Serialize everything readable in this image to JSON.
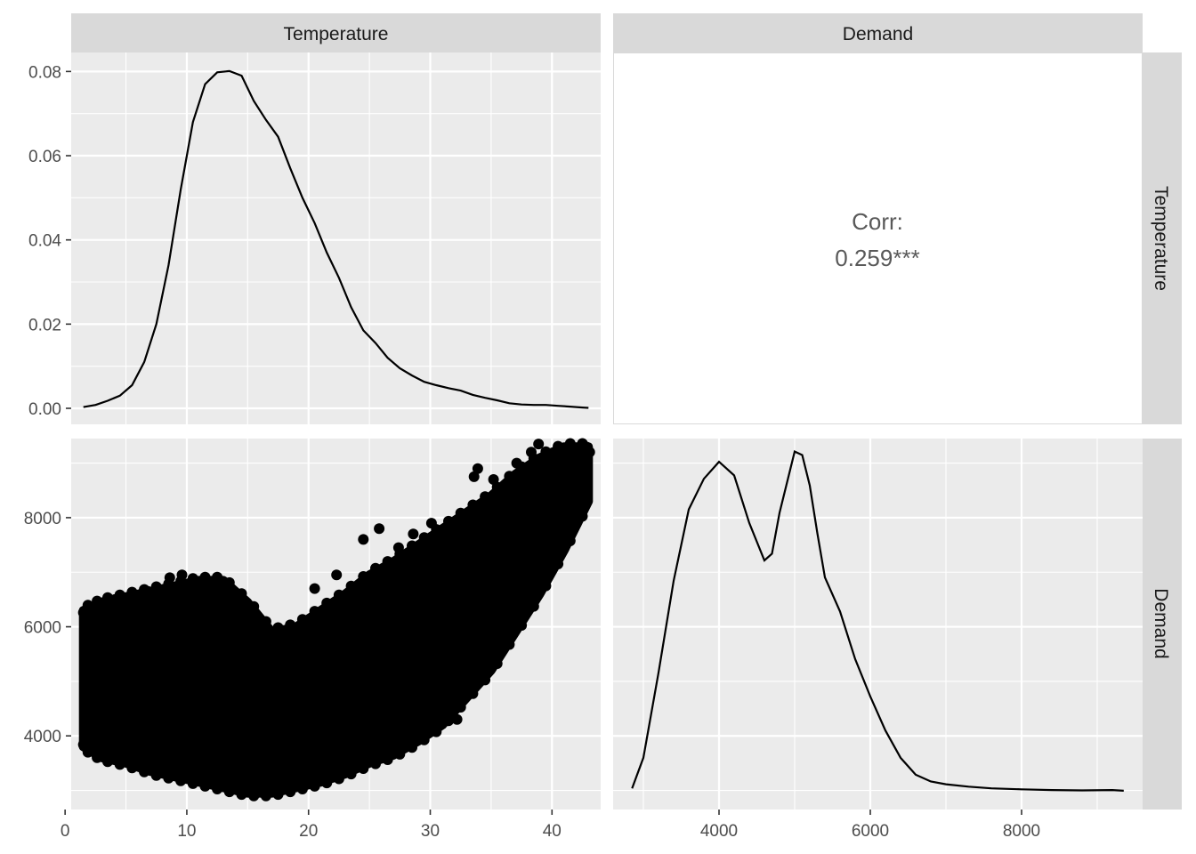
{
  "chart_data": {
    "type": "pairs",
    "variables": [
      "Temperature",
      "Demand"
    ],
    "strips": {
      "top": [
        "Temperature",
        "Demand"
      ],
      "right": [
        "Temperature",
        "Demand"
      ]
    },
    "panels": {
      "temperature_density": {
        "type": "line",
        "xlim": [
          0.5,
          44
        ],
        "ylim": [
          0,
          0.0805
        ],
        "yticks": [
          0.0,
          0.02,
          0.04,
          0.06,
          0.08
        ],
        "ytick_labels": [
          "0.00",
          "0.02",
          "0.04",
          "0.06",
          "0.08"
        ],
        "x": [
          1.5,
          2.5,
          3.5,
          4.5,
          5.5,
          6.5,
          7.5,
          8.5,
          9.5,
          10.5,
          11.5,
          12.5,
          13.5,
          14.5,
          15.5,
          16.5,
          17.5,
          18.5,
          19.5,
          20.5,
          21.5,
          22.5,
          23.5,
          24.5,
          25.5,
          26.5,
          27.5,
          28.5,
          29.5,
          30.5,
          31.5,
          32.5,
          33.5,
          34.5,
          35.5,
          36.5,
          37.5,
          38.5,
          39.5,
          40.5,
          41.5,
          42.5,
          43.0
        ],
        "y": [
          0.0003,
          0.0008,
          0.0018,
          0.003,
          0.0055,
          0.011,
          0.02,
          0.034,
          0.052,
          0.068,
          0.077,
          0.0798,
          0.0801,
          0.079,
          0.073,
          0.0685,
          0.0645,
          0.057,
          0.05,
          0.044,
          0.037,
          0.031,
          0.024,
          0.0185,
          0.0155,
          0.012,
          0.0095,
          0.0078,
          0.0063,
          0.0055,
          0.0048,
          0.0042,
          0.0032,
          0.0025,
          0.0019,
          0.0012,
          0.0009,
          0.0008,
          0.0008,
          0.0006,
          0.0004,
          0.0002,
          0.0001
        ]
      },
      "correlation": {
        "label": "Corr:",
        "value": "0.259***"
      },
      "scatter": {
        "type": "scatter",
        "xlim": [
          0.5,
          44
        ],
        "ylim": [
          2650,
          9450
        ],
        "xticks": [
          0,
          10,
          20,
          30,
          40
        ],
        "xtick_labels": [
          "0",
          "10",
          "20",
          "30",
          "40"
        ],
        "yticks": [
          4000,
          6000,
          8000
        ],
        "ytick_labels": [
          "4000",
          "6000",
          "8000"
        ],
        "envelope": {
          "x": [
            1.5,
            3,
            5,
            7,
            9,
            11,
            13,
            15,
            17,
            19,
            21,
            23,
            25,
            27,
            29,
            31,
            33,
            35,
            37,
            39,
            41,
            43
          ],
          "lower": [
            3800,
            3600,
            3500,
            3350,
            3250,
            3150,
            3050,
            2950,
            2950,
            3050,
            3150,
            3300,
            3500,
            3650,
            3900,
            4200,
            4700,
            5200,
            5900,
            6600,
            7400,
            8300
          ],
          "upper": [
            6300,
            6450,
            6550,
            6650,
            6750,
            6850,
            6850,
            6450,
            5900,
            6000,
            6300,
            6600,
            6950,
            7200,
            7500,
            7800,
            8100,
            8400,
            8800,
            9100,
            9300,
            9300
          ]
        },
        "outliers": [
          [
            1.6,
            4350
          ],
          [
            1.8,
            4650
          ],
          [
            2.1,
            6300
          ],
          [
            2.4,
            5200
          ],
          [
            1.9,
            3950
          ],
          [
            2.6,
            5900
          ],
          [
            3.2,
            6450
          ],
          [
            4.1,
            6500
          ],
          [
            6.8,
            6650
          ],
          [
            8.6,
            6900
          ],
          [
            9.6,
            6950
          ],
          [
            11.5,
            6800
          ],
          [
            22.3,
            6950
          ],
          [
            24.5,
            7600
          ],
          [
            25.8,
            7800
          ],
          [
            27.4,
            7450
          ],
          [
            28.6,
            7700
          ],
          [
            29.3,
            7350
          ],
          [
            30.1,
            7900
          ],
          [
            30.7,
            6400
          ],
          [
            31.1,
            6050
          ],
          [
            32.2,
            4300
          ],
          [
            33.0,
            8050
          ],
          [
            33.6,
            8750
          ],
          [
            33.9,
            8900
          ],
          [
            34.6,
            8300
          ],
          [
            35.2,
            8700
          ],
          [
            35.8,
            8400
          ],
          [
            36.3,
            7400
          ],
          [
            36.7,
            8600
          ],
          [
            37.1,
            9000
          ],
          [
            37.6,
            6700
          ],
          [
            37.9,
            8100
          ],
          [
            38.3,
            9200
          ],
          [
            38.7,
            7250
          ],
          [
            38.9,
            9350
          ],
          [
            39.4,
            6750
          ],
          [
            39.8,
            8550
          ],
          [
            40.4,
            8200
          ],
          [
            40.8,
            9250
          ],
          [
            41.3,
            8000
          ],
          [
            41.7,
            9250
          ],
          [
            42.3,
            9150
          ],
          [
            42.8,
            9300
          ],
          [
            43.1,
            9200
          ],
          [
            18.6,
            6000
          ],
          [
            20.5,
            6700
          ],
          [
            23.5,
            6200
          ],
          [
            26.2,
            5600
          ],
          [
            31.6,
            7250
          ]
        ]
      },
      "demand_density": {
        "type": "line",
        "xlim": [
          2600,
          9600
        ],
        "ylim": [
          0.0,
          1.02
        ],
        "xticks": [
          4000,
          6000,
          8000
        ],
        "xtick_labels": [
          "4000",
          "6000",
          "8000"
        ],
        "x": [
          2850,
          3000,
          3200,
          3400,
          3600,
          3800,
          4000,
          4200,
          4400,
          4600,
          4700,
          4800,
          5000,
          5100,
          5200,
          5300,
          5400,
          5600,
          5800,
          6000,
          6200,
          6400,
          6600,
          6800,
          7000,
          7300,
          7600,
          8000,
          8400,
          8800,
          9200,
          9350
        ],
        "y": [
          0.01,
          0.1,
          0.35,
          0.62,
          0.83,
          0.92,
          0.97,
          0.93,
          0.79,
          0.68,
          0.7,
          0.82,
          1.0,
          0.99,
          0.9,
          0.76,
          0.63,
          0.53,
          0.39,
          0.28,
          0.18,
          0.1,
          0.05,
          0.03,
          0.022,
          0.015,
          0.01,
          0.007,
          0.005,
          0.004,
          0.005,
          0.003
        ]
      }
    }
  }
}
